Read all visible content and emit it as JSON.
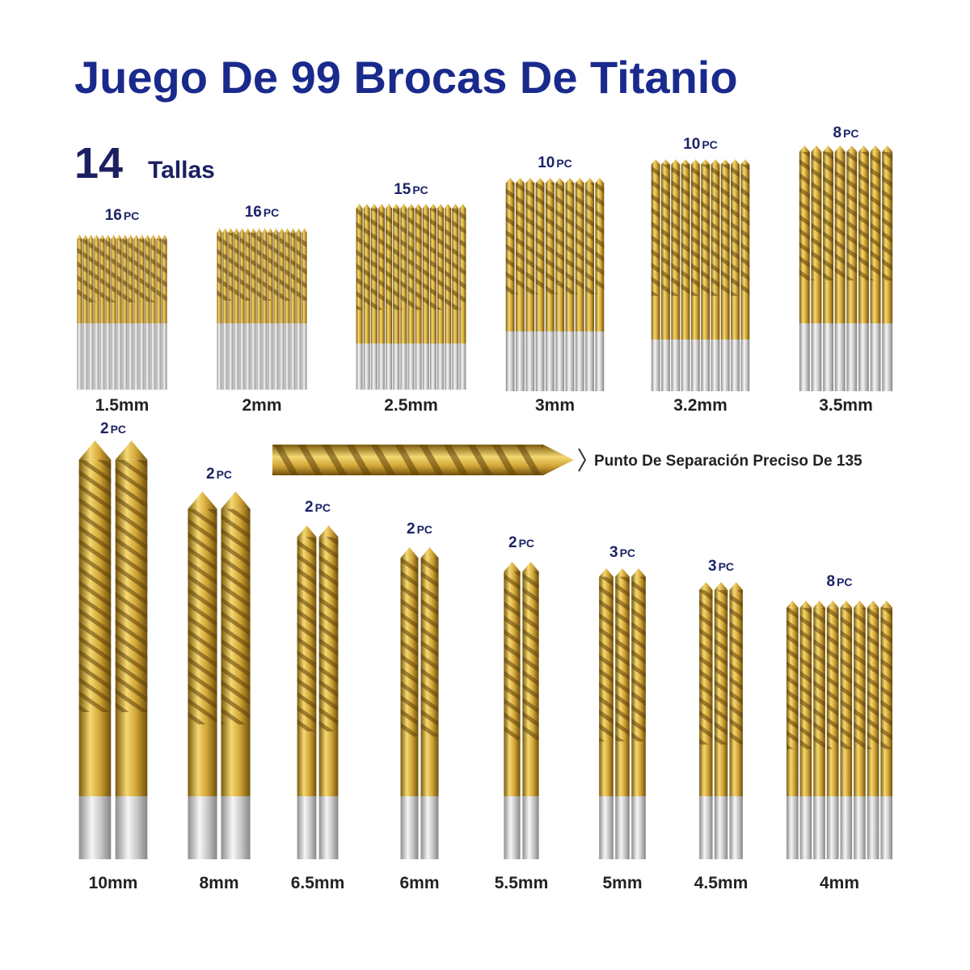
{
  "header": {
    "title": "Juego De 99 Brocas De Titanio",
    "sizes_count": "14",
    "sizes_label": "Tallas"
  },
  "callout": "Punto De Separación Preciso De 135",
  "groups": [
    {
      "count": 16,
      "unit": "PC",
      "size": "1.5mm"
    },
    {
      "count": 16,
      "unit": "PC",
      "size": "2mm"
    },
    {
      "count": 15,
      "unit": "PC",
      "size": "2.5mm"
    },
    {
      "count": 10,
      "unit": "PC",
      "size": "3mm"
    },
    {
      "count": 10,
      "unit": "PC",
      "size": "3.2mm"
    },
    {
      "count": 8,
      "unit": "PC",
      "size": "3.5mm"
    },
    {
      "count": 2,
      "unit": "PC",
      "size": "10mm"
    },
    {
      "count": 2,
      "unit": "PC",
      "size": "8mm"
    },
    {
      "count": 2,
      "unit": "PC",
      "size": "6.5mm"
    },
    {
      "count": 2,
      "unit": "PC",
      "size": "6mm"
    },
    {
      "count": 2,
      "unit": "PC",
      "size": "5.5mm"
    },
    {
      "count": 3,
      "unit": "PC",
      "size": "5mm"
    },
    {
      "count": 3,
      "unit": "PC",
      "size": "4.5mm"
    },
    {
      "count": 8,
      "unit": "PC",
      "size": "4mm"
    }
  ]
}
